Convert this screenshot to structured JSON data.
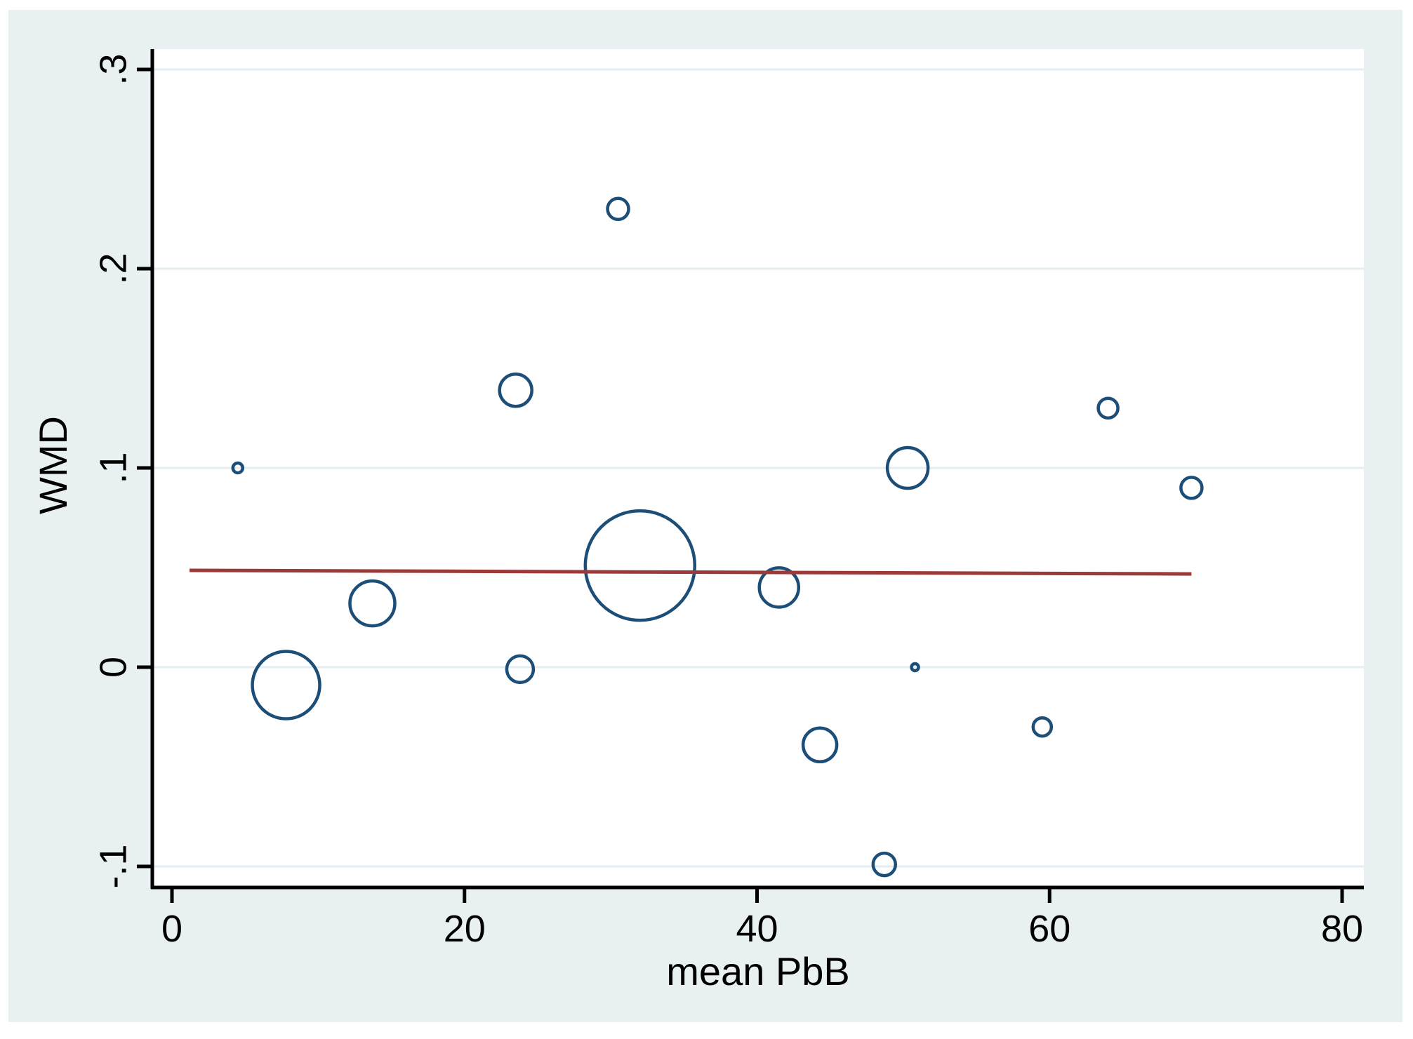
{
  "figure": {
    "background_color": "#e9f0f2",
    "plot_background": "#ffffff",
    "grid_color": "#e4eef2",
    "axis_color": "#000000",
    "marker_color": "#1d4e78",
    "line_color": "#9c3a3a",
    "text_color": "#000000"
  },
  "chart_data": {
    "type": "scatter",
    "subtype": "bubble-meta-regression",
    "title": "",
    "xlabel": "mean PbB",
    "ylabel": "WMD",
    "xlim": [
      -1.3,
      81.5
    ],
    "ylim": [
      -0.111,
      0.31
    ],
    "grid": "horizontal",
    "legend": "none",
    "x_ticks": [
      {
        "value": 0,
        "label": "0"
      },
      {
        "value": 20,
        "label": "20"
      },
      {
        "value": 40,
        "label": "40"
      },
      {
        "value": 60,
        "label": "60"
      },
      {
        "value": 80,
        "label": "80"
      }
    ],
    "y_ticks": [
      {
        "value": 0.3,
        "label": ".3"
      },
      {
        "value": 0.2,
        "label": ".2"
      },
      {
        "value": 0.1,
        "label": ".1"
      },
      {
        "value": 0,
        "label": "0"
      },
      {
        "value": -0.1,
        "label": "-.1"
      }
    ],
    "points": [
      {
        "x": 4.5,
        "y": 0.1,
        "r": 7
      },
      {
        "x": 7.8,
        "y": -0.009,
        "r": 48
      },
      {
        "x": 13.7,
        "y": 0.032,
        "r": 32
      },
      {
        "x": 23.5,
        "y": 0.139,
        "r": 23
      },
      {
        "x": 23.8,
        "y": -0.001,
        "r": 19
      },
      {
        "x": 30.5,
        "y": 0.23,
        "r": 15
      },
      {
        "x": 32.0,
        "y": 0.051,
        "r": 78
      },
      {
        "x": 41.5,
        "y": 0.04,
        "r": 28
      },
      {
        "x": 44.3,
        "y": -0.039,
        "r": 24
      },
      {
        "x": 48.7,
        "y": -0.099,
        "r": 16
      },
      {
        "x": 50.3,
        "y": 0.1,
        "r": 29
      },
      {
        "x": 50.8,
        "y": 0.0,
        "r": 5
      },
      {
        "x": 59.5,
        "y": -0.03,
        "r": 13
      },
      {
        "x": 64.0,
        "y": 0.13,
        "r": 14
      },
      {
        "x": 69.7,
        "y": 0.09,
        "r": 15
      }
    ],
    "regression_line": {
      "x1": 1.2,
      "y1": 0.0486,
      "x2": 69.7,
      "y2": 0.0468
    }
  }
}
